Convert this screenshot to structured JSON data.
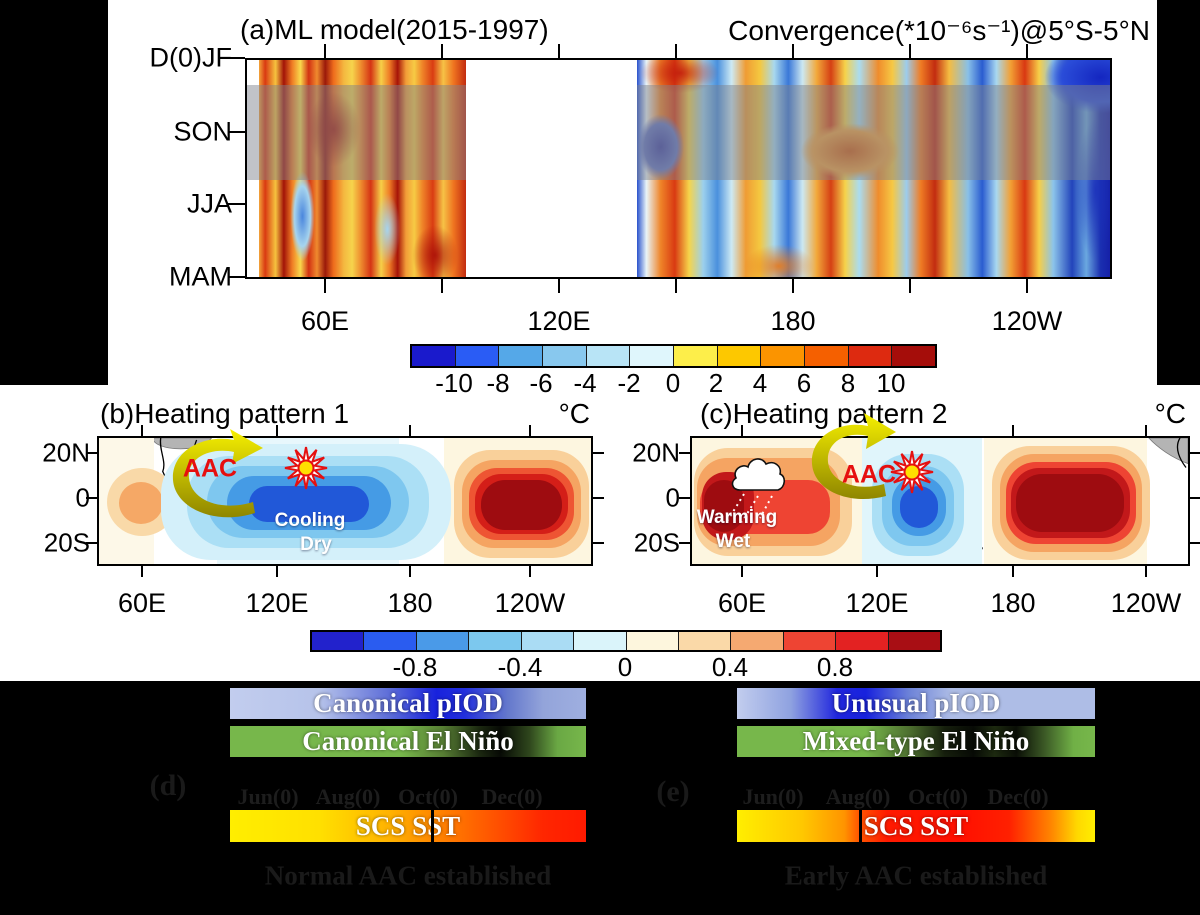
{
  "figure": {
    "panel_a": {
      "title": "(a)ML model(2015-1997)",
      "subtitle": "Convergence(*10⁻⁶s⁻¹)@5°S-5°N",
      "y_labels": [
        "D(0)JF",
        "SON",
        "JJA",
        "MAM"
      ],
      "x_labels": [
        "60E",
        "120E",
        "180",
        "120W"
      ],
      "colorbar": {
        "ticks": [
          "-10",
          "-8",
          "-6",
          "-4",
          "-2",
          "0",
          "2",
          "4",
          "6",
          "8",
          "10"
        ],
        "colors": [
          "#1a1acc",
          "#2a5cf5",
          "#55a8e8",
          "#88c8ee",
          "#b8e4f6",
          "#dff6fc",
          "#fdee4a",
          "#fdc800",
          "#fb9400",
          "#f56000",
          "#dd2a10",
          "#a50d0a"
        ]
      }
    },
    "panel_b": {
      "title": "(b)Heating pattern 1",
      "unit": "°C",
      "y_labels": [
        "20N",
        "0",
        "20S"
      ],
      "x_labels": [
        "60E",
        "120E",
        "180",
        "120W"
      ],
      "aac_label": "AAC",
      "text_line1": "Cooling",
      "text_line2": "Dry"
    },
    "panel_c": {
      "title": "(c)Heating pattern 2",
      "unit": "°C",
      "y_labels": [
        "20N",
        "0",
        "20S"
      ],
      "x_labels": [
        "60E",
        "120E",
        "180",
        "120W"
      ],
      "aac_label": "AAC",
      "text_line1": "Warming",
      "text_line2": "Wet"
    },
    "colorbar_bc": {
      "ticks": [
        "-0.8",
        "-0.4",
        "0",
        "0.4",
        "0.8"
      ],
      "colors": [
        "#2222cc",
        "#2a5cf0",
        "#4a9ae8",
        "#7cc8ee",
        "#aadcf4",
        "#daf4fa",
        "#fdf6dd",
        "#fad9a8",
        "#f5a971",
        "#ee4433",
        "#e32222",
        "#a80e14"
      ]
    },
    "panel_d": {
      "label": "(d)",
      "piod_label": "Canonical pIOD",
      "nino_label": "Canonical El Niño",
      "months": [
        "Jun(0)",
        "Aug(0)",
        "Oct(0)",
        "Dec(0)"
      ],
      "sst_label": "SCS SST",
      "caption": "Normal AAC established"
    },
    "panel_e": {
      "label": "(e)",
      "piod_label": "Unusual pIOD",
      "nino_label": "Mixed-type El Niño",
      "months": [
        "Jun(0)",
        "Aug(0)",
        "Oct(0)",
        "Dec(0)"
      ],
      "sst_label": "SCS SST",
      "caption": "Early AAC established"
    },
    "icons": {
      "aac_arrow": "curved-yellow-anticyclone-arrow",
      "sun": "red-sunburst-with-yellow-core",
      "cloud": "white-rain-cloud-with-dotted-rain"
    },
    "colors": {
      "aac_text": "#e60f0f",
      "arrow_yellow_top": "#f6f000",
      "arrow_yellow_bottom": "#8f8600",
      "son_band_overlay": "rgba(125,130,140,0.48)",
      "dim_text_on_black": "#1a1a1a",
      "background": "#000000"
    }
  },
  "chart_data": [
    {
      "type": "heatmap",
      "panel": "a",
      "title": "(a)ML model(2015-1997)",
      "subtitle": "Convergence(*10⁻⁶s⁻¹)@5°S-5°N",
      "units": "10⁻⁶ s⁻¹",
      "x_axis": {
        "tick_labels": [
          "60E",
          "120E",
          "180",
          "120W"
        ],
        "minor_tick_interval_deg": 30,
        "approx_range": [
          "40E",
          "100W"
        ]
      },
      "y_axis": {
        "tick_labels_top_to_bottom": [
          "D(0)JF",
          "SON",
          "JJA",
          "MAM"
        ]
      },
      "highlight_band": "gray transparent band over SON season",
      "data_mask": "no data plotted roughly 100E-140E (Maritime Continent gap)",
      "colorbar_ticks": [
        -10,
        -8,
        -6,
        -4,
        -2,
        0,
        2,
        4,
        6,
        8,
        10
      ],
      "values_estimated": {
        "lon_bins": [
          "45E",
          "55E",
          "65E",
          "75E",
          "85E",
          "95E",
          "145E",
          "155E",
          "165E",
          "175E",
          "175W",
          "165W",
          "155W",
          "145W",
          "135W",
          "125W",
          "115W",
          "105W"
        ],
        "rows": {
          "D(0)JF": [
            8,
            10,
            7,
            9,
            10,
            6,
            9,
            7,
            -4,
            2,
            4,
            3,
            2,
            -2,
            1,
            -6,
            -10,
            -9
          ],
          "SON": [
            7,
            9,
            8,
            8,
            7,
            8,
            2,
            -7,
            -3,
            3,
            6,
            7,
            4,
            2,
            1,
            -1,
            -3,
            -4
          ],
          "JJA": [
            4,
            8,
            -3,
            6,
            5,
            7,
            -2,
            5,
            3,
            -6,
            -2,
            4,
            6,
            -3,
            2,
            4,
            -8,
            -2
          ],
          "MAM": [
            6,
            9,
            5,
            8,
            4,
            7,
            4,
            2,
            -3,
            5,
            3,
            -4,
            8,
            2,
            -5,
            3,
            -2,
            6
          ]
        }
      }
    },
    {
      "type": "contour_map",
      "panel": "b",
      "title": "(b)Heating pattern 1",
      "units": "°C",
      "colorbar_ticks": [
        -0.8,
        -0.4,
        0,
        0.4,
        0.8
      ],
      "features": [
        {
          "name": "western Indian Ocean warm anomaly",
          "center_lon": "55E",
          "peak_value_c": 0.4
        },
        {
          "name": "Maritime Continent / western Pacific cold anomaly",
          "lon_span": "90E-180",
          "peak_value_c": -1.0,
          "labels": [
            "Cooling",
            "Dry"
          ]
        },
        {
          "name": "central-eastern Pacific warm anomaly",
          "lon_span": "170W-110W",
          "peak_value_c": 1.2
        },
        {
          "name": "anticyclone over South Asia",
          "label": "AAC"
        },
        {
          "name": "sun symbol over Philippine Sea"
        }
      ]
    },
    {
      "type": "contour_map",
      "panel": "c",
      "title": "(c)Heating pattern 2",
      "units": "°C",
      "colorbar_ticks": [
        -0.8,
        -0.4,
        0,
        0.4,
        0.8
      ],
      "features": [
        {
          "name": "Indian Ocean warm anomaly with equatorial tongue",
          "lon_span": "45E-95E",
          "peak_value_c": 1.2,
          "labels": [
            "Warming",
            "Wet"
          ]
        },
        {
          "name": "rain cloud over India",
          "symbol": "cloud"
        },
        {
          "name": "western Pacific cold anomaly",
          "lon_span": "120E-150E",
          "peak_value_c": -1.0
        },
        {
          "name": "central-eastern Pacific warm anomaly",
          "lon_span": "175E-125W",
          "peak_value_c": 1.2
        },
        {
          "name": "anticyclone near South China Sea",
          "label": "AAC"
        },
        {
          "name": "sun symbol east of Philippines"
        }
      ]
    },
    {
      "type": "timeline",
      "panel": "d",
      "bars": [
        "Canonical pIOD",
        "Canonical El Niño",
        "SCS SST"
      ],
      "months": [
        "Jun(0)",
        "Aug(0)",
        "Oct(0)",
        "Dec(0)"
      ],
      "piod_peak_position": 0.6,
      "nino_peak_position": 0.74,
      "scs_transition_month": "Oct(0)",
      "caption": "Normal AAC established"
    },
    {
      "type": "timeline",
      "panel": "e",
      "bars": [
        "Unusual pIOD",
        "Mixed-type El Niño",
        "SCS SST"
      ],
      "months": [
        "Jun(0)",
        "Aug(0)",
        "Oct(0)",
        "Dec(0)"
      ],
      "piod_peak_position": 0.33,
      "nino_peak_position": 0.62,
      "scs_transition_month": "Aug(0)",
      "caption": "Early AAC established"
    }
  ]
}
